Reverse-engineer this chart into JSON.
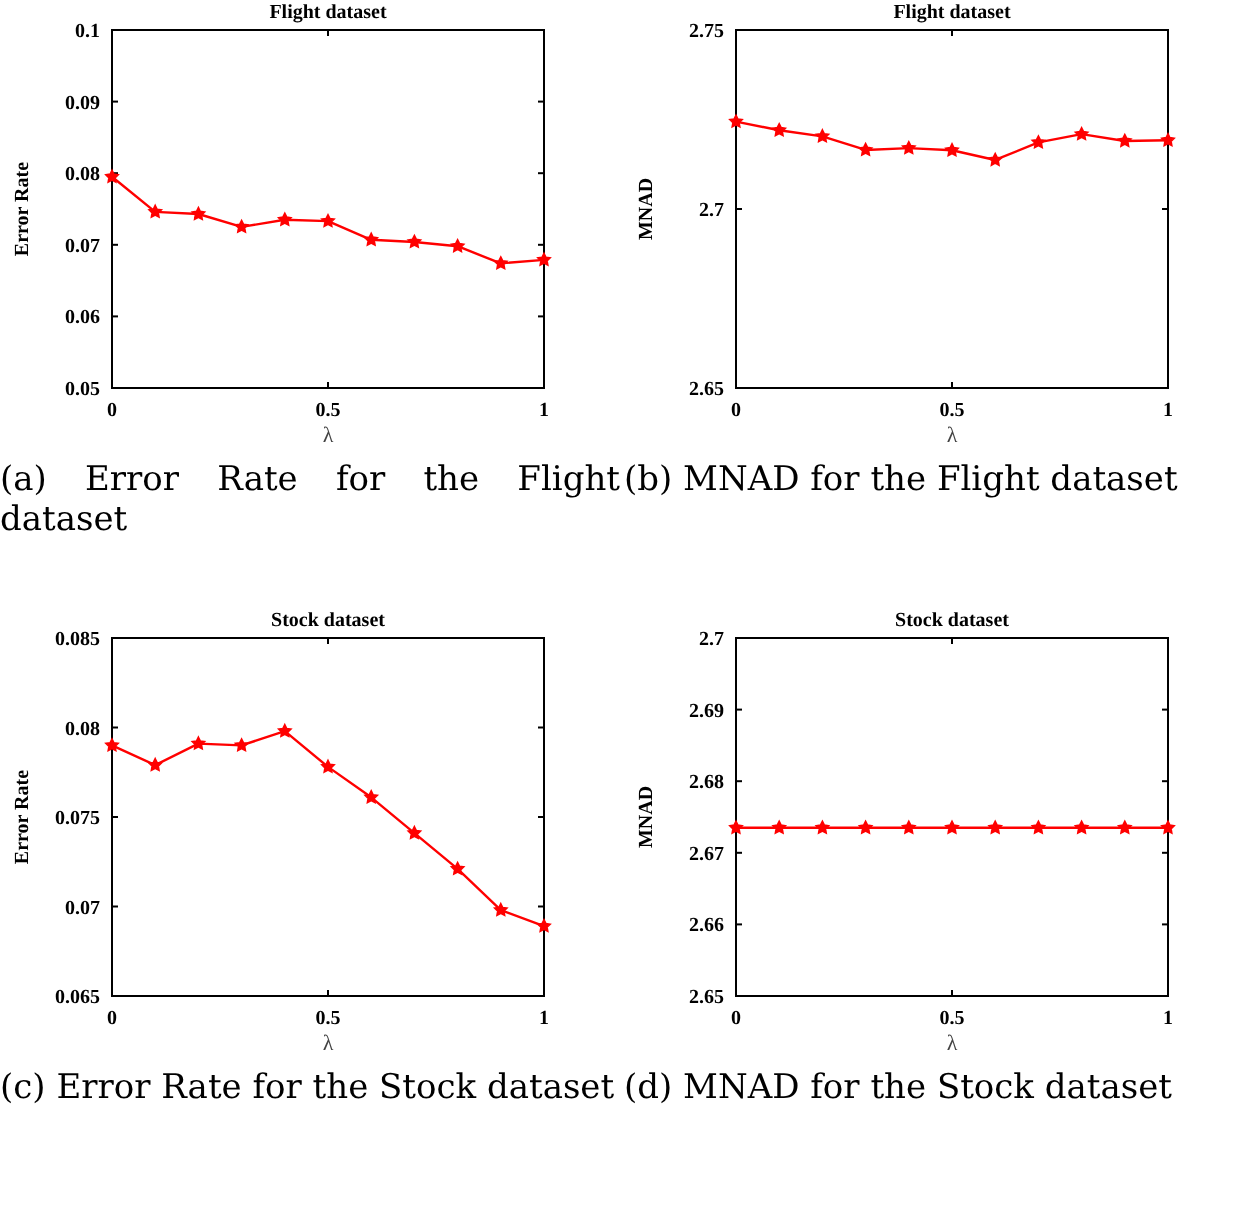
{
  "chart_data": [
    {
      "type": "line",
      "title": "Flight dataset",
      "xlabel": "λ",
      "ylabel": "Error Rate",
      "x": [
        0,
        0.1,
        0.2,
        0.3,
        0.4,
        0.5,
        0.6,
        0.7,
        0.8,
        0.9,
        1
      ],
      "series": [
        {
          "color": "#ff0000",
          "values": [
            0.0795,
            0.0746,
            0.0743,
            0.0725,
            0.0735,
            0.0733,
            0.0707,
            0.0704,
            0.0698,
            0.0674,
            0.0679
          ]
        }
      ],
      "xlim": [
        0,
        1
      ],
      "xticks": [
        0,
        0.5,
        1
      ],
      "ylim": [
        0.05,
        0.1
      ],
      "yticks": [
        0.05,
        0.06,
        0.07,
        0.08,
        0.09,
        0.1
      ],
      "marker": "star",
      "grid": false,
      "annotations": [
        "(a) Error Rate for the Flight dataset"
      ]
    },
    {
      "type": "line",
      "title": "Flight dataset",
      "xlabel": "λ",
      "ylabel": "MNAD",
      "x": [
        0,
        0.1,
        0.2,
        0.3,
        0.4,
        0.5,
        0.6,
        0.7,
        0.8,
        0.9,
        1
      ],
      "series": [
        {
          "color": "#ff0000",
          "values": [
            2.7244,
            2.722,
            2.7203,
            2.7165,
            2.717,
            2.7164,
            2.7137,
            2.7186,
            2.7209,
            2.719,
            2.7192
          ]
        }
      ],
      "xlim": [
        0,
        1
      ],
      "xticks": [
        0,
        0.5,
        1
      ],
      "ylim": [
        2.65,
        2.75
      ],
      "yticks": [
        2.65,
        2.7,
        2.75
      ],
      "marker": "star",
      "grid": false,
      "annotations": [
        "(b) MNAD for the Flight dataset"
      ]
    },
    {
      "type": "line",
      "title": "Stock dataset",
      "xlabel": "λ",
      "ylabel": "Error Rate",
      "x": [
        0,
        0.1,
        0.2,
        0.3,
        0.4,
        0.5,
        0.6,
        0.7,
        0.8,
        0.9,
        1
      ],
      "series": [
        {
          "color": "#ff0000",
          "values": [
            0.079,
            0.0779,
            0.0791,
            0.079,
            0.0798,
            0.0778,
            0.0761,
            0.0741,
            0.0721,
            0.0698,
            0.0689
          ]
        }
      ],
      "xlim": [
        0,
        1
      ],
      "xticks": [
        0,
        0.5,
        1
      ],
      "ylim": [
        0.065,
        0.085
      ],
      "yticks": [
        0.065,
        0.07,
        0.075,
        0.08,
        0.085
      ],
      "marker": "star",
      "grid": false,
      "annotations": [
        "(c) Error Rate for the Stock dataset"
      ]
    },
    {
      "type": "line",
      "title": "Stock dataset",
      "xlabel": "λ",
      "ylabel": "MNAD",
      "x": [
        0,
        0.1,
        0.2,
        0.3,
        0.4,
        0.5,
        0.6,
        0.7,
        0.8,
        0.9,
        1
      ],
      "series": [
        {
          "color": "#ff0000",
          "values": [
            2.6735,
            2.6735,
            2.6735,
            2.6735,
            2.6735,
            2.6735,
            2.6735,
            2.6735,
            2.6735,
            2.6735,
            2.6735
          ]
        }
      ],
      "xlim": [
        0,
        1
      ],
      "xticks": [
        0,
        0.5,
        1
      ],
      "ylim": [
        2.65,
        2.7
      ],
      "yticks": [
        2.65,
        2.66,
        2.67,
        2.68,
        2.69,
        2.7
      ],
      "marker": "star",
      "grid": false,
      "annotations": [
        "(d) MNAD for the Stock dataset"
      ]
    }
  ]
}
